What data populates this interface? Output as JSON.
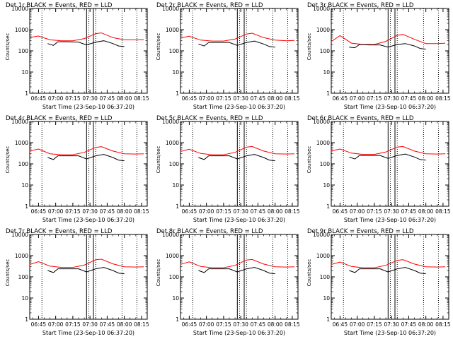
{
  "chart_data": [
    {
      "type": "line",
      "title": "Det 1r BLACK = Events, RED = LLD",
      "xlabel": "Start Time (23-Sep-10 06:37:20)",
      "ylabel": "Counts/sec",
      "ylog": true,
      "ylim": [
        1,
        10000
      ],
      "xlim": [
        "06:37:20",
        "08:20:00"
      ],
      "yticks": [
        "1",
        "10",
        "100",
        "1000",
        "10000"
      ],
      "xticks": [
        "06:45",
        "07:00",
        "07:15",
        "07:30",
        "07:45",
        "08:00",
        "08:15"
      ],
      "series": [
        {
          "name": "LLD",
          "color": "#ff0000",
          "x": [
            "06:37",
            "06:45",
            "06:55",
            "07:05",
            "07:15",
            "07:25",
            "07:35",
            "07:40",
            "07:50",
            "08:00",
            "08:10",
            "08:17"
          ],
          "values": [
            420,
            500,
            330,
            300,
            300,
            380,
            650,
            700,
            420,
            330,
            330,
            340
          ]
        },
        {
          "name": "Events",
          "color": "#000000",
          "x": [
            "06:53",
            "06:58",
            "07:02",
            "07:10",
            "07:20",
            "07:27",
            "07:35",
            "07:42",
            "07:50",
            "07:55",
            "08:00"
          ],
          "values": [
            220,
            180,
            270,
            270,
            260,
            190,
            260,
            300,
            220,
            170,
            160
          ]
        }
      ],
      "vlines_dotted": [
        "06:48",
        "07:29",
        "07:35",
        "07:58",
        "08:11"
      ],
      "vlines_solid": [
        "07:27",
        "07:33"
      ]
    },
    {
      "type": "line",
      "title": "Det 2r BLACK = Events, RED = LLD",
      "xlabel": "Start Time (23-Sep-10 06:37:20)",
      "ylabel": "Counts/sec",
      "ylog": true,
      "ylim": [
        1,
        10000
      ],
      "xlim": [
        "06:37:20",
        "08:20:00"
      ],
      "yticks": [
        "1",
        "10",
        "100",
        "1000",
        "10000"
      ],
      "xticks": [
        "06:45",
        "07:00",
        "07:15",
        "07:30",
        "07:45",
        "08:00",
        "08:15"
      ],
      "series": [
        {
          "name": "LLD",
          "color": "#ff0000",
          "x": [
            "06:37",
            "06:45",
            "06:55",
            "07:05",
            "07:15",
            "07:25",
            "07:35",
            "07:40",
            "07:50",
            "08:00",
            "08:10",
            "08:17"
          ],
          "values": [
            400,
            490,
            320,
            290,
            290,
            360,
            620,
            680,
            420,
            320,
            300,
            310
          ]
        },
        {
          "name": "Events",
          "color": "#000000",
          "x": [
            "06:53",
            "06:58",
            "07:02",
            "07:10",
            "07:20",
            "07:27",
            "07:35",
            "07:42",
            "07:50",
            "07:55",
            "08:00"
          ],
          "values": [
            210,
            170,
            250,
            250,
            250,
            180,
            250,
            290,
            210,
            160,
            150
          ]
        }
      ],
      "vlines_dotted": [
        "06:48",
        "07:29",
        "07:35",
        "07:58",
        "08:11"
      ],
      "vlines_solid": [
        "07:27",
        "07:33"
      ]
    },
    {
      "type": "line",
      "title": "Det 3r BLACK = Events, RED = LLD",
      "xlabel": "Start Time (23-Sep-10 06:37:20)",
      "ylabel": "Counts/sec",
      "ylog": true,
      "ylim": [
        1,
        10000
      ],
      "xlim": [
        "06:37:20",
        "08:20:00"
      ],
      "yticks": [
        "1",
        "10",
        "100",
        "1000",
        "10000"
      ],
      "xticks": [
        "06:45",
        "07:00",
        "07:15",
        "07:30",
        "07:45",
        "08:00",
        "08:15"
      ],
      "series": [
        {
          "name": "LLD",
          "color": "#ff0000",
          "x": [
            "06:37",
            "06:45",
            "06:55",
            "07:05",
            "07:15",
            "07:25",
            "07:35",
            "07:40",
            "07:50",
            "08:00",
            "08:10",
            "08:17"
          ],
          "values": [
            270,
            520,
            230,
            200,
            200,
            280,
            540,
            600,
            350,
            220,
            220,
            230
          ]
        },
        {
          "name": "Events",
          "color": "#000000",
          "x": [
            "06:53",
            "06:58",
            "07:02",
            "07:10",
            "07:20",
            "07:27",
            "07:35",
            "07:42",
            "07:50",
            "07:55",
            "08:00"
          ],
          "values": [
            150,
            140,
            200,
            190,
            190,
            150,
            200,
            220,
            170,
            130,
            120
          ]
        }
      ],
      "vlines_dotted": [
        "06:48",
        "07:29",
        "07:35",
        "07:58",
        "08:11"
      ],
      "vlines_solid": [
        "07:27",
        "07:33"
      ]
    },
    {
      "type": "line",
      "title": "Det 4r BLACK = Events, RED = LLD",
      "xlabel": "Start Time (23-Sep-10 06:37:20)",
      "ylabel": "Counts/sec",
      "ylog": true,
      "ylim": [
        1,
        10000
      ],
      "xlim": [
        "06:37:20",
        "08:20:00"
      ],
      "yticks": [
        "1",
        "10",
        "100",
        "1000",
        "10000"
      ],
      "xticks": [
        "06:45",
        "07:00",
        "07:15",
        "07:30",
        "07:45",
        "08:00",
        "08:15"
      ],
      "series": [
        {
          "name": "LLD",
          "color": "#ff0000",
          "x": [
            "06:37",
            "06:45",
            "06:55",
            "07:05",
            "07:15",
            "07:25",
            "07:35",
            "07:40",
            "07:50",
            "08:00",
            "08:10",
            "08:17"
          ],
          "values": [
            400,
            500,
            300,
            270,
            270,
            350,
            600,
            650,
            400,
            300,
            290,
            300
          ]
        },
        {
          "name": "Events",
          "color": "#000000",
          "x": [
            "06:53",
            "06:58",
            "07:02",
            "07:10",
            "07:20",
            "07:27",
            "07:35",
            "07:42",
            "07:50",
            "07:55",
            "08:00"
          ],
          "values": [
            200,
            160,
            240,
            240,
            240,
            170,
            240,
            280,
            200,
            150,
            140
          ]
        }
      ],
      "vlines_dotted": [
        "06:48",
        "07:29",
        "07:35",
        "07:58",
        "08:11"
      ],
      "vlines_solid": [
        "07:27",
        "07:33"
      ]
    },
    {
      "type": "line",
      "title": "Det 5r BLACK = Events, RED = LLD",
      "xlabel": "Start Time (23-Sep-10 06:37:20)",
      "ylabel": "Counts/sec",
      "ylog": true,
      "ylim": [
        1,
        10000
      ],
      "xlim": [
        "06:37:20",
        "08:20:00"
      ],
      "yticks": [
        "1",
        "10",
        "100",
        "1000",
        "10000"
      ],
      "xticks": [
        "06:45",
        "07:00",
        "07:15",
        "07:30",
        "07:45",
        "08:00",
        "08:15"
      ],
      "series": [
        {
          "name": "LLD",
          "color": "#ff0000",
          "x": [
            "06:37",
            "06:45",
            "06:55",
            "07:05",
            "07:15",
            "07:25",
            "07:35",
            "07:40",
            "07:50",
            "08:00",
            "08:10",
            "08:17"
          ],
          "values": [
            380,
            490,
            310,
            270,
            270,
            350,
            610,
            660,
            400,
            300,
            290,
            300
          ]
        },
        {
          "name": "Events",
          "color": "#000000",
          "x": [
            "06:53",
            "06:58",
            "07:02",
            "07:10",
            "07:20",
            "07:27",
            "07:35",
            "07:42",
            "07:50",
            "07:55",
            "08:00"
          ],
          "values": [
            200,
            160,
            240,
            240,
            240,
            170,
            240,
            280,
            200,
            150,
            140
          ]
        }
      ],
      "vlines_dotted": [
        "06:48",
        "07:29",
        "07:35",
        "07:58",
        "08:11"
      ],
      "vlines_solid": [
        "07:27",
        "07:33"
      ]
    },
    {
      "type": "line",
      "title": "Det 6r BLACK = Events, RED = LLD",
      "xlabel": "Start Time (23-Sep-10 06:37:20)",
      "ylabel": "Counts/sec",
      "ylog": true,
      "ylim": [
        1,
        10000
      ],
      "xlim": [
        "06:37:20",
        "08:20:00"
      ],
      "yticks": [
        "1",
        "10",
        "100",
        "1000",
        "10000"
      ],
      "xticks": [
        "06:45",
        "07:00",
        "07:15",
        "07:30",
        "07:45",
        "08:00",
        "08:15"
      ],
      "series": [
        {
          "name": "LLD",
          "color": "#ff0000",
          "x": [
            "06:37",
            "06:45",
            "06:55",
            "07:05",
            "07:15",
            "07:25",
            "07:35",
            "07:40",
            "07:50",
            "08:00",
            "08:10",
            "08:17"
          ],
          "values": [
            400,
            500,
            320,
            280,
            280,
            360,
            620,
            660,
            400,
            300,
            290,
            300
          ]
        },
        {
          "name": "Events",
          "color": "#000000",
          "x": [
            "06:53",
            "06:58",
            "07:02",
            "07:10",
            "07:20",
            "07:27",
            "07:35",
            "07:42",
            "07:50",
            "07:55",
            "08:00"
          ],
          "values": [
            210,
            170,
            250,
            250,
            250,
            180,
            250,
            290,
            210,
            160,
            150
          ]
        }
      ],
      "vlines_dotted": [
        "06:48",
        "07:29",
        "07:35",
        "07:58",
        "08:11"
      ],
      "vlines_solid": [
        "07:27",
        "07:33"
      ]
    },
    {
      "type": "line",
      "title": "Det 7r BLACK = Events, RED = LLD",
      "xlabel": "Start Time (23-Sep-10 06:37:20)",
      "ylabel": "Counts/sec",
      "ylog": true,
      "ylim": [
        1,
        10000
      ],
      "xlim": [
        "06:37:20",
        "08:20:00"
      ],
      "yticks": [
        "1",
        "10",
        "100",
        "1000",
        "10000"
      ],
      "xticks": [
        "06:45",
        "07:00",
        "07:15",
        "07:30",
        "07:45",
        "08:00",
        "08:15"
      ],
      "series": [
        {
          "name": "LLD",
          "color": "#ff0000",
          "x": [
            "06:37",
            "06:45",
            "06:55",
            "07:05",
            "07:15",
            "07:25",
            "07:35",
            "07:40",
            "07:50",
            "08:00",
            "08:10",
            "08:17"
          ],
          "values": [
            380,
            520,
            320,
            280,
            280,
            360,
            640,
            680,
            410,
            300,
            290,
            300
          ]
        },
        {
          "name": "Events",
          "color": "#000000",
          "x": [
            "06:53",
            "06:58",
            "07:02",
            "07:10",
            "07:20",
            "07:27",
            "07:35",
            "07:42",
            "07:50",
            "07:55",
            "08:00"
          ],
          "values": [
            200,
            160,
            240,
            240,
            240,
            170,
            240,
            280,
            200,
            150,
            140
          ]
        }
      ],
      "vlines_dotted": [
        "06:48",
        "07:29",
        "07:35",
        "07:58",
        "08:11"
      ],
      "vlines_solid": [
        "07:27",
        "07:33"
      ]
    },
    {
      "type": "line",
      "title": "Det 8r BLACK = Events, RED = LLD",
      "xlabel": "Start Time (23-Sep-10 06:37:20)",
      "ylabel": "Counts/sec",
      "ylog": true,
      "ylim": [
        1,
        10000
      ],
      "xlim": [
        "06:37:20",
        "08:20:00"
      ],
      "yticks": [
        "1",
        "10",
        "100",
        "1000",
        "10000"
      ],
      "xticks": [
        "06:45",
        "07:00",
        "07:15",
        "07:30",
        "07:45",
        "08:00",
        "08:15"
      ],
      "series": [
        {
          "name": "LLD",
          "color": "#ff0000",
          "x": [
            "06:37",
            "06:45",
            "06:55",
            "07:05",
            "07:15",
            "07:25",
            "07:35",
            "07:40",
            "07:50",
            "08:00",
            "08:10",
            "08:17"
          ],
          "values": [
            390,
            510,
            310,
            270,
            270,
            350,
            620,
            660,
            400,
            300,
            290,
            300
          ]
        },
        {
          "name": "Events",
          "color": "#000000",
          "x": [
            "06:53",
            "06:58",
            "07:02",
            "07:10",
            "07:20",
            "07:27",
            "07:35",
            "07:42",
            "07:50",
            "07:55",
            "08:00"
          ],
          "values": [
            200,
            160,
            240,
            240,
            240,
            170,
            240,
            280,
            200,
            150,
            140
          ]
        }
      ],
      "vlines_dotted": [
        "06:48",
        "07:29",
        "07:35",
        "07:58",
        "08:11"
      ],
      "vlines_solid": [
        "07:27",
        "07:33"
      ]
    },
    {
      "type": "line",
      "title": "Det 9r BLACK = Events, RED = LLD",
      "xlabel": "Start Time (23-Sep-10 06:37:20)",
      "ylabel": "Counts/sec",
      "ylog": true,
      "ylim": [
        1,
        10000
      ],
      "xlim": [
        "06:37:20",
        "08:20:00"
      ],
      "yticks": [
        "1",
        "10",
        "100",
        "1000",
        "10000"
      ],
      "xticks": [
        "06:45",
        "07:00",
        "07:15",
        "07:30",
        "07:45",
        "08:00",
        "08:15"
      ],
      "series": [
        {
          "name": "LLD",
          "color": "#ff0000",
          "x": [
            "06:37",
            "06:45",
            "06:55",
            "07:05",
            "07:15",
            "07:25",
            "07:35",
            "07:40",
            "07:50",
            "08:00",
            "08:10",
            "08:17"
          ],
          "values": [
            380,
            500,
            310,
            270,
            270,
            350,
            600,
            650,
            400,
            300,
            290,
            300
          ]
        },
        {
          "name": "Events",
          "color": "#000000",
          "x": [
            "06:53",
            "06:58",
            "07:02",
            "07:10",
            "07:20",
            "07:27",
            "07:35",
            "07:42",
            "07:50",
            "07:55",
            "08:00"
          ],
          "values": [
            200,
            160,
            240,
            240,
            240,
            170,
            240,
            280,
            200,
            150,
            140
          ]
        }
      ],
      "vlines_dotted": [
        "06:48",
        "07:29",
        "07:35",
        "07:58",
        "08:11"
      ],
      "vlines_solid": [
        "07:27",
        "07:33"
      ]
    }
  ]
}
